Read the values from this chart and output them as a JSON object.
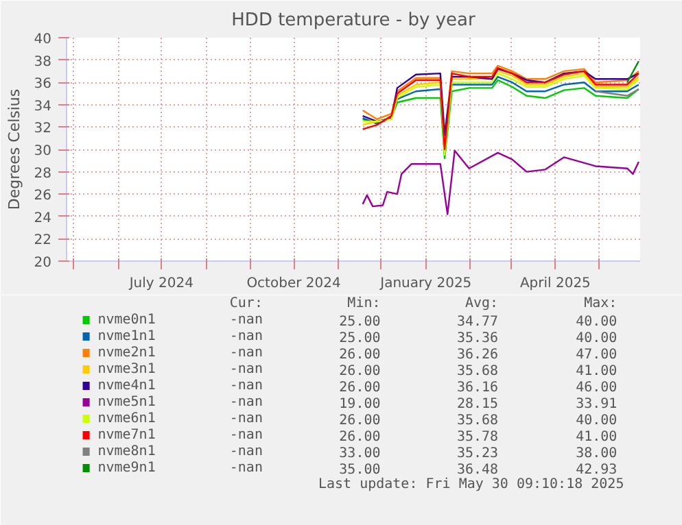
{
  "chart_data": {
    "type": "line",
    "title": "HDD temperature - by year",
    "ylabel": "Degrees Celsius",
    "x": [
      "2024-11-18",
      "2024-11-28",
      "2024-12-08",
      "2024-12-12",
      "2024-12-25",
      "2025-01-11",
      "2025-01-14",
      "2025-01-19",
      "2025-01-31",
      "2025-02-16",
      "2025-02-20",
      "2025-03-02",
      "2025-03-12",
      "2025-03-25",
      "2025-04-07",
      "2025-04-21",
      "2025-04-29",
      "2025-05-21",
      "2025-05-29"
    ],
    "series": [
      {
        "name": "nvme0n1",
        "color": "#00cc00",
        "values": [
          32.7,
          32.4,
          32.8,
          34.2,
          34.6,
          34.6,
          29.2,
          35.2,
          35.5,
          35.5,
          36.2,
          35.6,
          34.8,
          34.6,
          35.3,
          35.5,
          34.8,
          34.6,
          35.4
        ]
      },
      {
        "name": "nvme1n1",
        "color": "#0066b3",
        "values": [
          32.8,
          32.3,
          32.8,
          34.5,
          35.2,
          35.4,
          30.4,
          35.8,
          35.8,
          35.8,
          36.5,
          36.0,
          35.2,
          35.2,
          35.8,
          36.0,
          35.2,
          35.2,
          35.8
        ]
      },
      {
        "name": "nvme2n1",
        "color": "#ff8000",
        "values": [
          33.5,
          32.7,
          33.2,
          35.2,
          36.4,
          36.4,
          31,
          37.0,
          36.8,
          36.8,
          37.5,
          37.0,
          36.3,
          36.3,
          37.0,
          37.2,
          36.0,
          36.2,
          37.0
        ]
      },
      {
        "name": "nvme3n1",
        "color": "#ffcc00",
        "values": [
          32.2,
          32.5,
          32.8,
          34.8,
          35.8,
          36.0,
          30,
          36.3,
          36.3,
          36.3,
          37.0,
          36.6,
          35.8,
          35.8,
          36.5,
          36.8,
          35.6,
          35.6,
          36.5
        ]
      },
      {
        "name": "nvme4n1",
        "color": "#330099",
        "values": [
          33.0,
          32.5,
          32.8,
          35.5,
          36.7,
          36.8,
          31.3,
          36.5,
          36.5,
          36.3,
          37.2,
          36.8,
          36.2,
          36.0,
          36.8,
          37.0,
          36.3,
          36.3,
          36.8
        ]
      },
      {
        "name": "nvme5n1",
        "color": "#990099",
        "x": [
          "2024-11-18",
          "2024-11-21",
          "2024-11-25",
          "2024-12-02",
          "2024-12-05",
          "2024-12-12",
          "2024-12-15",
          "2024-12-22",
          "2025-01-11",
          "2025-01-16",
          "2025-01-21",
          "2025-01-31",
          "2025-02-20",
          "2025-03-02",
          "2025-03-12",
          "2025-03-25",
          "2025-04-07",
          "2025-04-29",
          "2025-05-21",
          "2025-05-25",
          "2025-05-29"
        ],
        "values": [
          25.1,
          25.9,
          24.9,
          25.0,
          26.2,
          26.0,
          27.8,
          28.7,
          28.7,
          24.2,
          29.9,
          28.3,
          29.7,
          29.1,
          28.0,
          28.2,
          29.3,
          28.5,
          28.3,
          27.8,
          28.9
        ]
      },
      {
        "name": "nvme6n1",
        "color": "#ccff00",
        "values": [
          32.5,
          32.5,
          32.7,
          34.6,
          35.6,
          35.8,
          29.5,
          36.0,
          36.0,
          36.0,
          36.8,
          36.3,
          35.6,
          35.6,
          36.3,
          36.6,
          35.5,
          35.4,
          36.3
        ]
      },
      {
        "name": "nvme7n1",
        "color": "#ff0000",
        "values": [
          31.8,
          32.2,
          33.0,
          35.0,
          36.2,
          36.2,
          30,
          36.8,
          36.5,
          36.5,
          37.3,
          36.8,
          36.0,
          36.0,
          36.7,
          37.0,
          35.8,
          35.8,
          36.8
        ]
      },
      {
        "name": "nvme8n1",
        "color": "#808080",
        "values": [
          null,
          null,
          null,
          null,
          null,
          null,
          null,
          null,
          null,
          null,
          null,
          null,
          null,
          null,
          null,
          null,
          35.2,
          34.8,
          35.4
        ]
      },
      {
        "name": "nvme9n1",
        "color": "#008f00",
        "values": [
          null,
          null,
          null,
          null,
          null,
          null,
          null,
          null,
          null,
          null,
          null,
          null,
          null,
          null,
          null,
          null,
          null,
          36.0,
          37.9
        ]
      }
    ],
    "xlim": [
      "2024-04-26",
      "2025-05-30"
    ],
    "xticks": [
      {
        "value": "2024-05-01",
        "label": null
      },
      {
        "value": "2024-06-01",
        "label": null
      },
      {
        "value": "2024-07-01",
        "label": "July 2024"
      },
      {
        "value": "2024-08-01",
        "label": null
      },
      {
        "value": "2024-09-01",
        "label": null
      },
      {
        "value": "2024-10-01",
        "label": "October 2024"
      },
      {
        "value": "2024-11-01",
        "label": null
      },
      {
        "value": "2024-12-01",
        "label": null
      },
      {
        "value": "2025-01-01",
        "label": "January 2025"
      },
      {
        "value": "2025-02-01",
        "label": null
      },
      {
        "value": "2025-03-01",
        "label": null
      },
      {
        "value": "2025-04-01",
        "label": "April 2025"
      },
      {
        "value": "2025-05-01",
        "label": null
      }
    ],
    "ylim": [
      20,
      40
    ],
    "yticks": [
      20,
      22,
      24,
      26,
      28,
      30,
      32,
      34,
      36,
      38,
      40
    ],
    "grid": true,
    "legend": "bottom",
    "annotations": [
      "Cur:",
      "Min:",
      "Avg:",
      "Max:",
      "-nan",
      "25.00",
      "34.77",
      "40.00",
      "-nan",
      "25.00",
      "35.36",
      "40.00",
      "-nan",
      "26.00",
      "36.26",
      "47.00",
      "-nan",
      "26.00",
      "35.68",
      "41.00",
      "-nan",
      "26.00",
      "36.16",
      "46.00",
      "-nan",
      "19.00",
      "28.15",
      "33.91",
      "-nan",
      "26.00",
      "35.68",
      "40.00",
      "-nan",
      "26.00",
      "35.78",
      "41.00",
      "-nan",
      "33.00",
      "35.23",
      "38.00",
      "-nan",
      "35.00",
      "36.48",
      "42.93",
      "Last update: Fri May 30 09:10:18 2025"
    ]
  }
}
